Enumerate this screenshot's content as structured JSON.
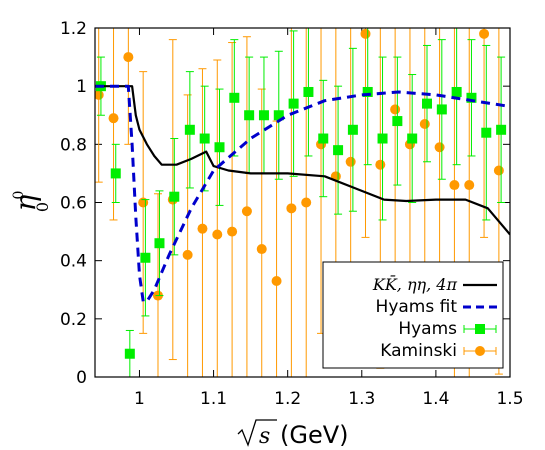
{
  "chart_data": {
    "type": "line",
    "title": "",
    "xlabel": "√s (GeV)",
    "ylabel": "η₀⁰",
    "xlim": [
      0.94,
      1.5
    ],
    "ylim": [
      0,
      1.2
    ],
    "x_ticks": [
      1,
      1.1,
      1.2,
      1.3,
      1.4,
      1.5
    ],
    "x_tick_labels": [
      "1",
      "1.1",
      "1.2",
      "1.3",
      "1.4",
      "1.5"
    ],
    "y_ticks": [
      0,
      0.2,
      0.4,
      0.6,
      0.8,
      1,
      1.2
    ],
    "y_tick_labels": [
      "0",
      "0.2",
      "0.4",
      "0.6",
      "0.8",
      "1",
      "1.2"
    ],
    "grid": false,
    "legend_position": "bottom-right",
    "series": [
      {
        "name": "KK̄, ηη, 4π",
        "kind": "line",
        "color": "#000000",
        "x": [
          0.94,
          0.99,
          0.995,
          1.0,
          1.01,
          1.02,
          1.03,
          1.05,
          1.07,
          1.09,
          1.1,
          1.12,
          1.15,
          1.2,
          1.25,
          1.3,
          1.33,
          1.36,
          1.4,
          1.44,
          1.47,
          1.5
        ],
        "y": [
          1.0,
          1.0,
          0.9,
          0.85,
          0.8,
          0.76,
          0.73,
          0.73,
          0.75,
          0.775,
          0.725,
          0.71,
          0.7,
          0.7,
          0.69,
          0.64,
          0.61,
          0.605,
          0.61,
          0.61,
          0.58,
          0.49
        ]
      },
      {
        "name": "Hyams fit",
        "kind": "dashed-line",
        "color": "#0000cc",
        "x": [
          0.94,
          0.985,
          0.99,
          0.995,
          1.0,
          1.005,
          1.01,
          1.02,
          1.04,
          1.07,
          1.1,
          1.15,
          1.2,
          1.25,
          1.3,
          1.35,
          1.4,
          1.45,
          1.5
        ],
        "y": [
          1.0,
          1.0,
          0.8,
          0.55,
          0.35,
          0.26,
          0.26,
          0.3,
          0.42,
          0.58,
          0.71,
          0.82,
          0.9,
          0.95,
          0.97,
          0.98,
          0.97,
          0.95,
          0.93
        ]
      },
      {
        "name": "Hyams",
        "kind": "points-errorbars",
        "color": "#00ee00",
        "marker": "square",
        "x": [
          0.948,
          0.968,
          0.987,
          1.008,
          1.027,
          1.047,
          1.068,
          1.088,
          1.108,
          1.128,
          1.148,
          1.168,
          1.188,
          1.208,
          1.228,
          1.248,
          1.268,
          1.288,
          1.308,
          1.328,
          1.348,
          1.368,
          1.388,
          1.408,
          1.428,
          1.448,
          1.468,
          1.488
        ],
        "y": [
          1.0,
          0.7,
          0.08,
          0.41,
          0.46,
          0.62,
          0.85,
          0.82,
          0.79,
          0.96,
          0.9,
          0.9,
          0.9,
          0.94,
          0.98,
          0.82,
          0.78,
          0.85,
          0.98,
          0.82,
          0.88,
          0.82,
          0.94,
          0.92,
          0.98,
          0.96,
          0.84,
          0.85
        ],
        "err": [
          0.1,
          0.1,
          0.08,
          0.2,
          0.18,
          0.2,
          0.2,
          0.18,
          0.2,
          0.2,
          0.2,
          0.2,
          0.22,
          0.25,
          0.22,
          0.2,
          0.22,
          0.28,
          0.25,
          0.28,
          0.22,
          0.22,
          0.2,
          0.24,
          0.25,
          0.2,
          0.3,
          0.25
        ]
      },
      {
        "name": "Kaminski",
        "kind": "points-errorbars",
        "color": "#ff9900",
        "marker": "circle",
        "x": [
          0.945,
          0.965,
          0.985,
          1.005,
          1.025,
          1.045,
          1.065,
          1.085,
          1.105,
          1.125,
          1.145,
          1.165,
          1.185,
          1.205,
          1.225,
          1.245,
          1.265,
          1.285,
          1.305,
          1.325,
          1.345,
          1.365,
          1.385,
          1.405,
          1.425,
          1.445,
          1.465,
          1.485
        ],
        "y": [
          0.97,
          0.89,
          1.1,
          0.6,
          0.28,
          0.61,
          0.42,
          0.51,
          0.49,
          0.5,
          0.57,
          0.44,
          0.33,
          0.58,
          0.6,
          0.8,
          0.69,
          0.74,
          1.18,
          0.73,
          0.92,
          0.8,
          0.87,
          0.79,
          0.66,
          0.66,
          1.18,
          0.71
        ],
        "err": [
          0.3,
          0.35,
          0.3,
          0.45,
          0.35,
          0.55,
          0.55,
          0.55,
          0.6,
          0.65,
          0.6,
          0.55,
          0.55,
          0.65,
          0.65,
          0.65,
          0.65,
          0.65,
          0.7,
          0.7,
          0.75,
          0.75,
          0.7,
          0.7,
          0.7,
          0.7,
          0.7,
          0.7
        ]
      }
    ]
  }
}
